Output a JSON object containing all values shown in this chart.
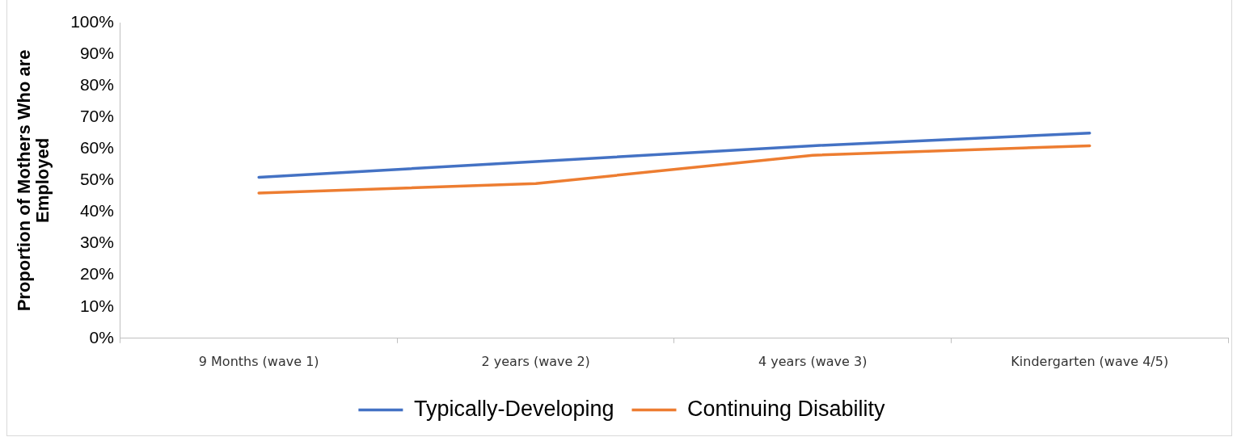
{
  "chart_data": {
    "type": "line",
    "ylabel": "Proportion of Mothers Who are Employed",
    "categories": [
      "9 Months (wave 1)",
      "2 years (wave 2)",
      "4 years (wave 3)",
      "Kindergarten (wave 4/5)"
    ],
    "series": [
      {
        "name": "Typically-Developing",
        "color": "#4472c4",
        "values": [
          51,
          56,
          61,
          65
        ]
      },
      {
        "name": "Continuing Disability",
        "color": "#ed7d31",
        "values": [
          46,
          49,
          58,
          61
        ]
      }
    ],
    "ylim": [
      0,
      100
    ],
    "yticks": [
      {
        "value": 0,
        "label": "0%"
      },
      {
        "value": 10,
        "label": "10%"
      },
      {
        "value": 20,
        "label": "20%"
      },
      {
        "value": 30,
        "label": "30%"
      },
      {
        "value": 40,
        "label": "40%"
      },
      {
        "value": 50,
        "label": "50%"
      },
      {
        "value": 60,
        "label": "60%"
      },
      {
        "value": 70,
        "label": "70%"
      },
      {
        "value": 80,
        "label": "80%"
      },
      {
        "value": 90,
        "label": "90%"
      },
      {
        "value": 100,
        "label": "100%"
      }
    ],
    "grid": false,
    "legend": "bottom",
    "marker": "none",
    "line_style": "solid"
  }
}
